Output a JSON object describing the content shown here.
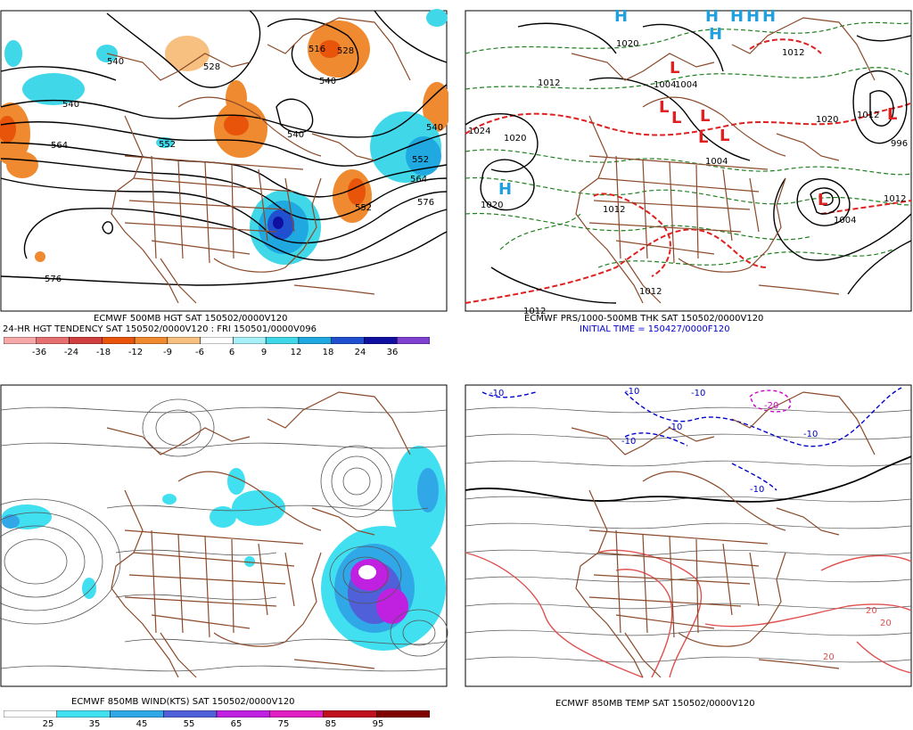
{
  "panels": [
    {
      "id": "hgt500",
      "caption_line1": "ECMWF 500MB HGT SAT 150502/0000V120",
      "caption_line2": "24-HR HGT TENDENCY SAT 150502/0000V120 : FRI 150501/0000V096",
      "contour_labels": [
        "540",
        "540",
        "564",
        "552",
        "540",
        "528",
        "516",
        "528",
        "540",
        "540",
        "552",
        "564",
        "576",
        "552",
        "576"
      ],
      "colorbar": {
        "labels": [
          "-36",
          "-24",
          "-18",
          "-12",
          "-9",
          "-6",
          "6",
          "9",
          "12",
          "18",
          "24",
          "36"
        ],
        "colors": [
          "#f7a8a8",
          "#e67070",
          "#d04040",
          "#e8540a",
          "#f08a30",
          "#f8c080",
          "#ffffff",
          "#a8f0f8",
          "#40d8e8",
          "#20a8e0",
          "#2050d0",
          "#1010a0",
          "#8040d0"
        ]
      }
    },
    {
      "id": "prs_thk",
      "caption_line1": "ECMWF PRS/1000-500MB THK SAT 150502/0000V120",
      "caption_line2": "INITIAL TIME = 150427/0000F120",
      "contour_labels": [
        "1020",
        "1012",
        "1004",
        "1004",
        "1020",
        "1012",
        "996",
        "1020",
        "1004",
        "1012",
        "1004",
        "1012",
        "1012",
        "1012",
        "1012",
        "1024",
        "1020"
      ],
      "highs": [
        "H",
        "H",
        "H",
        "H",
        "H",
        "H",
        "H"
      ],
      "lows": [
        "L",
        "L",
        "L",
        "L",
        "L",
        "L",
        "L",
        "L"
      ]
    },
    {
      "id": "wind850",
      "caption_line1": "ECMWF 850MB WIND(KTS) SAT 150502/0000V120",
      "colorbar": {
        "labels": [
          "25",
          "35",
          "45",
          "55",
          "65",
          "75",
          "85",
          "95"
        ],
        "colors": [
          "#ffffff",
          "#40e0f0",
          "#30a8e8",
          "#5060d8",
          "#c020e0",
          "#e020c0",
          "#c01020",
          "#800000"
        ]
      }
    },
    {
      "id": "temp850",
      "caption_line1": "ECMWF 850MB TEMP SAT 150502/0000V120",
      "contour_labels": [
        "-10",
        "-10",
        "-10",
        "-10",
        "-10",
        "-20",
        "-10",
        "20",
        "20",
        "-10",
        "20"
      ]
    }
  ],
  "colors": {
    "map_lines": "#8b4a2a",
    "contour": "#000000",
    "thickness_green": "#208020",
    "thickness_red": "#e02020",
    "pressure_high": "#20a0e0",
    "pressure_low": "#e02020",
    "cold_temp": "#0000cc",
    "very_cold_temp": "#cc00cc",
    "warm_temp": "#e05050"
  }
}
